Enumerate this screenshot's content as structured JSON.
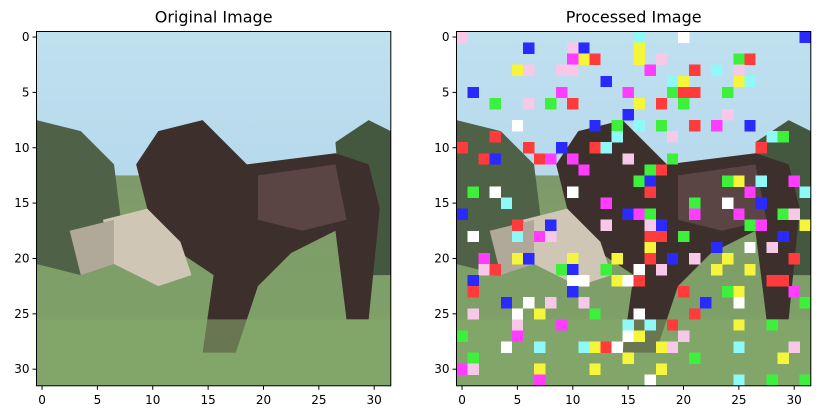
{
  "chart_data": [
    {
      "type": "image",
      "title": "Original Image",
      "xlim": [
        -0.5,
        31.5
      ],
      "ylim": [
        31.5,
        -0.5
      ],
      "xticks": [
        0,
        5,
        10,
        15,
        20,
        25,
        30
      ],
      "yticks": [
        0,
        5,
        10,
        15,
        20,
        25,
        30
      ]
    },
    {
      "type": "image",
      "title": "Processed Image",
      "xlim": [
        -0.5,
        31.5
      ],
      "ylim": [
        31.5,
        -0.5
      ],
      "xticks": [
        0,
        5,
        10,
        15,
        20,
        25,
        30
      ],
      "yticks": [
        0,
        5,
        10,
        15,
        20,
        25,
        30
      ]
    }
  ]
}
